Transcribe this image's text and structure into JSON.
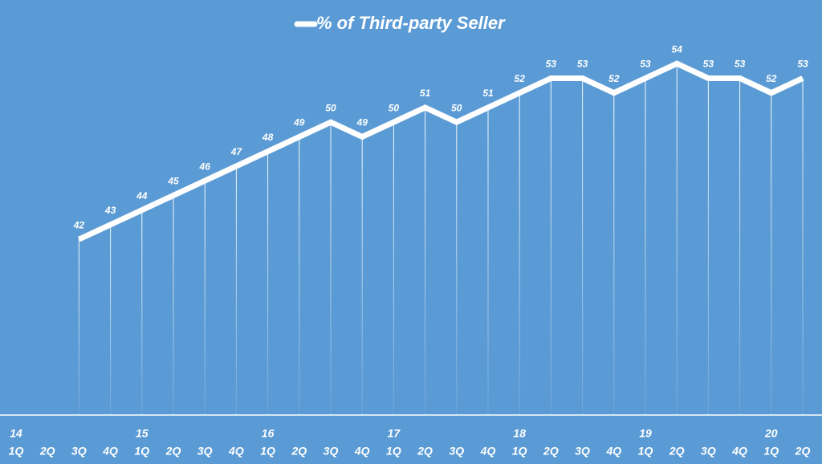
{
  "chart_data": {
    "type": "line",
    "categories": [
      "1Q",
      "2Q",
      "3Q",
      "4Q",
      "1Q",
      "2Q",
      "3Q",
      "4Q",
      "1Q",
      "2Q",
      "3Q",
      "4Q",
      "1Q",
      "2Q",
      "3Q",
      "4Q",
      "1Q",
      "2Q",
      "3Q",
      "4Q",
      "1Q",
      "2Q",
      "3Q",
      "4Q",
      "1Q",
      "2Q"
    ],
    "year_labels": [
      "14",
      null,
      null,
      null,
      "15",
      null,
      null,
      null,
      "16",
      null,
      null,
      null,
      "17",
      null,
      null,
      null,
      "18",
      null,
      null,
      null,
      "19",
      null,
      null,
      null,
      "20",
      null
    ],
    "series": [
      {
        "name": "% of Third-party Seller",
        "color": "#ffffff",
        "values": [
          null,
          null,
          42,
          43,
          44,
          45,
          46,
          47,
          48,
          49,
          50,
          49,
          50,
          51,
          50,
          51,
          52,
          53,
          53,
          52,
          53,
          54,
          53,
          53,
          52,
          53
        ]
      }
    ],
    "ylim": [
      30,
      55
    ],
    "drop_lines": true,
    "legend": "top"
  }
}
